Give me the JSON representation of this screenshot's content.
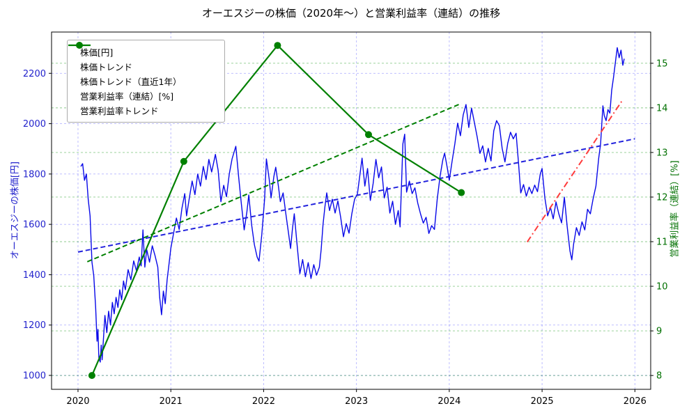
{
  "chart_data": {
    "type": "line",
    "title": "オーエスジーの株価（2020年～）と営業利益率（連結）の推移",
    "x_axis": {
      "label": "",
      "ticks": [
        2020,
        2021,
        2022,
        2023,
        2024,
        2025,
        2026
      ],
      "range": [
        2019.715,
        2026.17
      ],
      "tick_color": "#000000"
    },
    "y_left": {
      "label": "オーエスジーの株価[円]",
      "ticks": [
        1000,
        1200,
        1400,
        1600,
        1800,
        2000,
        2200
      ],
      "range": [
        944.7,
        2364.0
      ],
      "tick_color": "#2222cc"
    },
    "y_right": {
      "label": "営業利益率（連結）[%]",
      "ticks": [
        8,
        9,
        10,
        11,
        12,
        13,
        14,
        15
      ],
      "range": [
        7.69,
        15.7
      ],
      "tick_color": "#007000"
    },
    "grid": {
      "x_color": "rgba(60,60,255,0.38)",
      "y_left_color": "rgba(60,60,255,0.38)",
      "y_right_color": "rgba(0,140,0,0.45)",
      "dash": "3,3"
    },
    "legend_position": "upper-left",
    "series": [
      {
        "name": "株価[円]",
        "axis": "left",
        "color": "#0808e8",
        "style": "solid",
        "marker": false,
        "width": 1.4,
        "points": [
          [
            2020.03,
            1830
          ],
          [
            2020.05,
            1841
          ],
          [
            2020.07,
            1775
          ],
          [
            2020.09,
            1800
          ],
          [
            2020.11,
            1700
          ],
          [
            2020.13,
            1634
          ],
          [
            2020.15,
            1450
          ],
          [
            2020.17,
            1395
          ],
          [
            2020.19,
            1270
          ],
          [
            2020.205,
            1136
          ],
          [
            2020.215,
            1183
          ],
          [
            2020.225,
            1070
          ],
          [
            2020.24,
            1053
          ],
          [
            2020.25,
            1120
          ],
          [
            2020.26,
            1062
          ],
          [
            2020.275,
            1150
          ],
          [
            2020.29,
            1238
          ],
          [
            2020.31,
            1170
          ],
          [
            2020.33,
            1255
          ],
          [
            2020.35,
            1200
          ],
          [
            2020.37,
            1290
          ],
          [
            2020.39,
            1245
          ],
          [
            2020.41,
            1310
          ],
          [
            2020.43,
            1270
          ],
          [
            2020.45,
            1340
          ],
          [
            2020.47,
            1300
          ],
          [
            2020.49,
            1375
          ],
          [
            2020.51,
            1340
          ],
          [
            2020.54,
            1420
          ],
          [
            2020.57,
            1380
          ],
          [
            2020.6,
            1455
          ],
          [
            2020.63,
            1415
          ],
          [
            2020.66,
            1470
          ],
          [
            2020.68,
            1435
          ],
          [
            2020.7,
            1578
          ],
          [
            2020.72,
            1430
          ],
          [
            2020.74,
            1500
          ],
          [
            2020.77,
            1450
          ],
          [
            2020.8,
            1515
          ],
          [
            2020.83,
            1475
          ],
          [
            2020.86,
            1430
          ],
          [
            2020.88,
            1310
          ],
          [
            2020.9,
            1241
          ],
          [
            2020.92,
            1335
          ],
          [
            2020.94,
            1285
          ],
          [
            2020.96,
            1380
          ],
          [
            2020.98,
            1440
          ],
          [
            2021.0,
            1505
          ],
          [
            2021.03,
            1565
          ],
          [
            2021.06,
            1625
          ],
          [
            2021.09,
            1580
          ],
          [
            2021.12,
            1665
          ],
          [
            2021.15,
            1722
          ],
          [
            2021.17,
            1634
          ],
          [
            2021.2,
            1705
          ],
          [
            2021.23,
            1772
          ],
          [
            2021.26,
            1718
          ],
          [
            2021.29,
            1800
          ],
          [
            2021.32,
            1752
          ],
          [
            2021.35,
            1830
          ],
          [
            2021.38,
            1778
          ],
          [
            2021.41,
            1858
          ],
          [
            2021.44,
            1808
          ],
          [
            2021.48,
            1878
          ],
          [
            2021.51,
            1815
          ],
          [
            2021.54,
            1690
          ],
          [
            2021.57,
            1755
          ],
          [
            2021.6,
            1710
          ],
          [
            2021.63,
            1800
          ],
          [
            2021.66,
            1860
          ],
          [
            2021.7,
            1910
          ],
          [
            2021.73,
            1790
          ],
          [
            2021.76,
            1680
          ],
          [
            2021.79,
            1578
          ],
          [
            2021.82,
            1650
          ],
          [
            2021.84,
            1717
          ],
          [
            2021.87,
            1600
          ],
          [
            2021.9,
            1520
          ],
          [
            2021.93,
            1470
          ],
          [
            2021.95,
            1454
          ],
          [
            2021.98,
            1560
          ],
          [
            2022.01,
            1700
          ],
          [
            2022.03,
            1860
          ],
          [
            2022.06,
            1780
          ],
          [
            2022.08,
            1705
          ],
          [
            2022.11,
            1790
          ],
          [
            2022.13,
            1827
          ],
          [
            2022.16,
            1750
          ],
          [
            2022.18,
            1690
          ],
          [
            2022.21,
            1725
          ],
          [
            2022.24,
            1640
          ],
          [
            2022.27,
            1560
          ],
          [
            2022.29,
            1504
          ],
          [
            2022.31,
            1580
          ],
          [
            2022.33,
            1642
          ],
          [
            2022.36,
            1520
          ],
          [
            2022.39,
            1404
          ],
          [
            2022.42,
            1460
          ],
          [
            2022.45,
            1392
          ],
          [
            2022.48,
            1448
          ],
          [
            2022.51,
            1385
          ],
          [
            2022.54,
            1440
          ],
          [
            2022.57,
            1398
          ],
          [
            2022.6,
            1430
          ],
          [
            2022.62,
            1500
          ],
          [
            2022.64,
            1600
          ],
          [
            2022.66,
            1670
          ],
          [
            2022.68,
            1725
          ],
          [
            2022.71,
            1655
          ],
          [
            2022.74,
            1700
          ],
          [
            2022.77,
            1645
          ],
          [
            2022.8,
            1693
          ],
          [
            2022.83,
            1628
          ],
          [
            2022.86,
            1551
          ],
          [
            2022.89,
            1603
          ],
          [
            2022.92,
            1565
          ],
          [
            2022.95,
            1642
          ],
          [
            2022.98,
            1700
          ],
          [
            2023.01,
            1720
          ],
          [
            2023.04,
            1805
          ],
          [
            2023.06,
            1863
          ],
          [
            2023.09,
            1752
          ],
          [
            2023.12,
            1822
          ],
          [
            2023.15,
            1695
          ],
          [
            2023.18,
            1762
          ],
          [
            2023.21,
            1858
          ],
          [
            2023.24,
            1785
          ],
          [
            2023.27,
            1828
          ],
          [
            2023.3,
            1705
          ],
          [
            2023.33,
            1748
          ],
          [
            2023.36,
            1645
          ],
          [
            2023.39,
            1692
          ],
          [
            2023.42,
            1600
          ],
          [
            2023.45,
            1655
          ],
          [
            2023.47,
            1590
          ],
          [
            2023.5,
            1920
          ],
          [
            2023.52,
            1958
          ],
          [
            2023.54,
            1728
          ],
          [
            2023.57,
            1772
          ],
          [
            2023.6,
            1722
          ],
          [
            2023.63,
            1745
          ],
          [
            2023.66,
            1685
          ],
          [
            2023.69,
            1642
          ],
          [
            2023.72,
            1605
          ],
          [
            2023.75,
            1628
          ],
          [
            2023.78,
            1564
          ],
          [
            2023.81,
            1595
          ],
          [
            2023.84,
            1580
          ],
          [
            2023.87,
            1700
          ],
          [
            2023.9,
            1790
          ],
          [
            2023.93,
            1856
          ],
          [
            2023.95,
            1883
          ],
          [
            2023.98,
            1822
          ],
          [
            2024.0,
            1775
          ],
          [
            2024.03,
            1850
          ],
          [
            2024.06,
            1920
          ],
          [
            2024.09,
            2002
          ],
          [
            2024.12,
            1952
          ],
          [
            2024.15,
            2035
          ],
          [
            2024.18,
            2076
          ],
          [
            2024.21,
            1985
          ],
          [
            2024.24,
            2062
          ],
          [
            2024.27,
            2005
          ],
          [
            2024.3,
            1948
          ],
          [
            2024.33,
            1882
          ],
          [
            2024.36,
            1912
          ],
          [
            2024.39,
            1848
          ],
          [
            2024.42,
            1902
          ],
          [
            2024.45,
            1852
          ],
          [
            2024.48,
            1972
          ],
          [
            2024.51,
            2012
          ],
          [
            2024.54,
            1992
          ],
          [
            2024.57,
            1902
          ],
          [
            2024.6,
            1848
          ],
          [
            2024.63,
            1922
          ],
          [
            2024.66,
            1966
          ],
          [
            2024.69,
            1940
          ],
          [
            2024.72,
            1962
          ],
          [
            2024.745,
            1850
          ],
          [
            2024.77,
            1725
          ],
          [
            2024.8,
            1758
          ],
          [
            2024.83,
            1712
          ],
          [
            2024.86,
            1748
          ],
          [
            2024.89,
            1722
          ],
          [
            2024.92,
            1756
          ],
          [
            2024.95,
            1730
          ],
          [
            2024.98,
            1800
          ],
          [
            2025.0,
            1822
          ],
          [
            2025.03,
            1705
          ],
          [
            2025.06,
            1634
          ],
          [
            2025.09,
            1668
          ],
          [
            2025.12,
            1622
          ],
          [
            2025.15,
            1689
          ],
          [
            2025.18,
            1642
          ],
          [
            2025.21,
            1606
          ],
          [
            2025.24,
            1708
          ],
          [
            2025.27,
            1592
          ],
          [
            2025.3,
            1495
          ],
          [
            2025.32,
            1459
          ],
          [
            2025.34,
            1522
          ],
          [
            2025.37,
            1587
          ],
          [
            2025.4,
            1556
          ],
          [
            2025.43,
            1610
          ],
          [
            2025.46,
            1578
          ],
          [
            2025.49,
            1660
          ],
          [
            2025.52,
            1642
          ],
          [
            2025.55,
            1702
          ],
          [
            2025.58,
            1752
          ],
          [
            2025.61,
            1863
          ],
          [
            2025.63,
            1920
          ],
          [
            2025.655,
            2071
          ],
          [
            2025.67,
            2032
          ],
          [
            2025.69,
            2012
          ],
          [
            2025.71,
            2056
          ],
          [
            2025.73,
            2042
          ],
          [
            2025.75,
            2132
          ],
          [
            2025.77,
            2185
          ],
          [
            2025.79,
            2245
          ],
          [
            2025.81,
            2302
          ],
          [
            2025.83,
            2262
          ],
          [
            2025.85,
            2292
          ],
          [
            2025.87,
            2232
          ],
          [
            2025.885,
            2258
          ]
        ]
      },
      {
        "name": "株価トレンド",
        "axis": "left",
        "color": "#2222dd",
        "style": "dashed",
        "marker": false,
        "width": 2,
        "points": [
          [
            2020.0,
            1490
          ],
          [
            2026.0,
            1940
          ]
        ]
      },
      {
        "name": "株価トレンド（直近1年）",
        "axis": "left",
        "color": "#ff3b3b",
        "style": "dashdot",
        "marker": false,
        "width": 2,
        "points": [
          [
            2024.84,
            1530
          ],
          [
            2025.86,
            2090
          ]
        ]
      },
      {
        "name": "営業利益率（連結）[%]",
        "axis": "right",
        "color": "#008000",
        "style": "solid",
        "marker": true,
        "width": 2.2,
        "points": [
          [
            2020.15,
            8.0
          ],
          [
            2021.14,
            12.8
          ],
          [
            2022.15,
            15.4
          ],
          [
            2023.13,
            13.4
          ],
          [
            2024.13,
            12.1
          ]
        ]
      },
      {
        "name": "営業利益率トレンド",
        "axis": "right",
        "color": "#008000",
        "style": "dashed",
        "marker": false,
        "width": 2,
        "points": [
          [
            2020.1,
            10.55
          ],
          [
            2024.13,
            14.1
          ]
        ]
      }
    ]
  }
}
